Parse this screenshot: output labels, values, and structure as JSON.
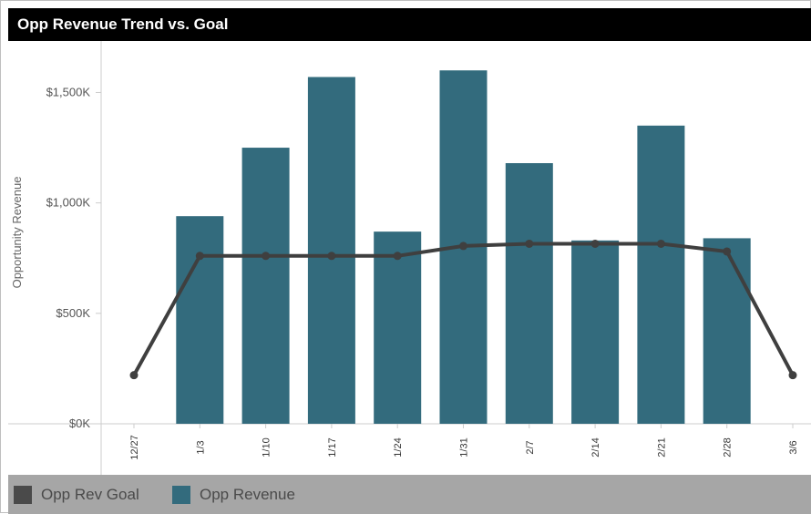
{
  "window": {
    "title": "Opp Revenue Trend vs. Goal"
  },
  "colors": {
    "bar": "#336b7d",
    "line": "#3f3f3f",
    "title_bg": "#000000",
    "legend_bg": "#a6a6a6"
  },
  "legend": {
    "items": [
      {
        "label": "Opp Rev Goal",
        "color": "#4a4a4a",
        "icon": "square-swatch"
      },
      {
        "label": "Opp Revenue",
        "color": "#336b7d",
        "icon": "square-swatch"
      }
    ]
  },
  "chart_data": {
    "type": "bar",
    "title": "Opp Revenue Trend vs. Goal",
    "xlabel": "",
    "ylabel": "Opportunity Revenue",
    "ylim": [
      0,
      1700
    ],
    "y_unit": "K",
    "y_ticks": [
      {
        "value": 0,
        "label": "$0K"
      },
      {
        "value": 500,
        "label": "$500K"
      },
      {
        "value": 1000,
        "label": "$1,000K"
      },
      {
        "value": 1500,
        "label": "$1,500K"
      }
    ],
    "categories": [
      "12/27",
      "1/3",
      "1/10",
      "1/17",
      "1/24",
      "1/31",
      "2/7",
      "2/14",
      "2/21",
      "2/28",
      "3/6"
    ],
    "series": [
      {
        "name": "Opp Revenue",
        "type": "bar",
        "values": [
          null,
          940,
          1250,
          1570,
          870,
          1600,
          1180,
          830,
          1350,
          840,
          null
        ]
      },
      {
        "name": "Opp Rev Goal",
        "type": "line",
        "values": [
          220,
          760,
          760,
          760,
          760,
          805,
          815,
          815,
          815,
          780,
          220
        ]
      }
    ],
    "grid": false,
    "legend_position": "bottom-left"
  }
}
